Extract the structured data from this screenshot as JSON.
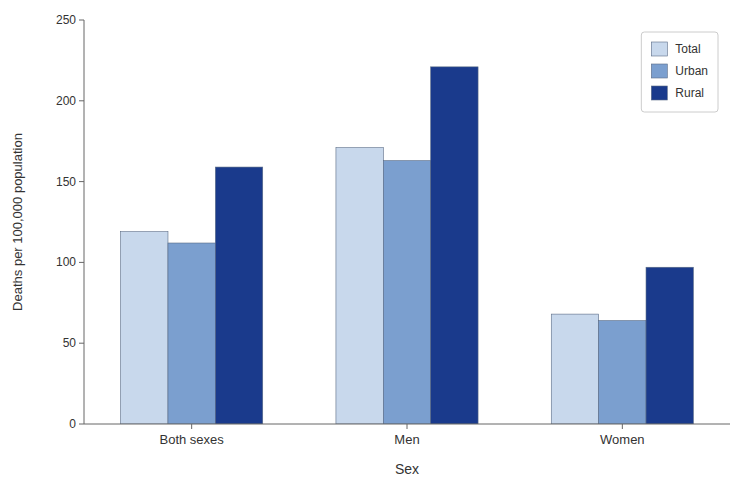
{
  "chart_data": {
    "type": "bar",
    "categories": [
      "Both sexes",
      "Men",
      "Women"
    ],
    "series": [
      {
        "name": "Total",
        "color": "#c8d8ec",
        "values": [
          119,
          171,
          68
        ]
      },
      {
        "name": "Urban",
        "color": "#7b9fcf",
        "values": [
          112,
          163,
          64
        ]
      },
      {
        "name": "Rural",
        "color": "#1a3a8c",
        "values": [
          159,
          221,
          97
        ]
      }
    ],
    "xlabel": "Sex",
    "ylabel": "Deaths per 100,000 population",
    "ylim": [
      0,
      250
    ],
    "yticks": [
      0,
      50,
      100,
      150,
      200,
      250
    ],
    "grid": false,
    "legend": "upper right"
  }
}
